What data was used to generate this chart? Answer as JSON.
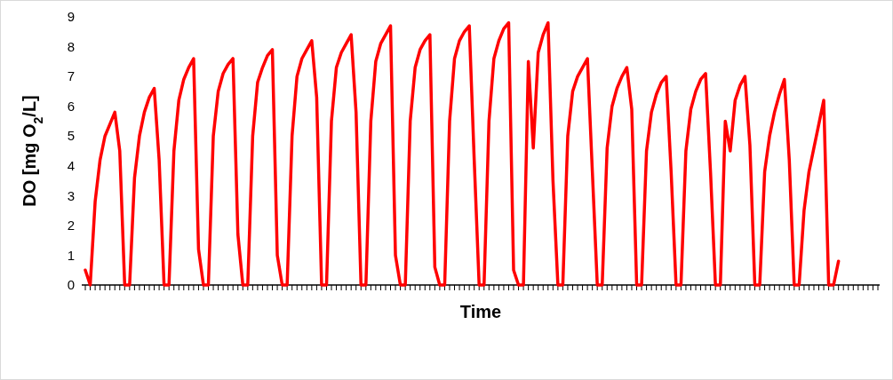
{
  "chart_data": {
    "type": "line",
    "xlabel": "Time",
    "ylabel": "DO [mg O$_{2}$/L]",
    "categories": [
      null,
      null,
      null,
      null,
      null,
      null,
      null,
      null,
      null,
      null,
      null,
      null,
      null,
      null,
      null,
      null,
      null,
      null,
      null,
      null,
      null,
      null,
      null,
      null,
      null,
      null,
      null,
      null,
      null,
      null,
      null,
      null,
      null,
      null,
      null,
      null,
      null,
      null,
      null,
      null,
      null,
      null,
      null,
      null,
      null,
      null,
      null,
      null,
      null,
      null,
      null,
      null,
      null,
      null,
      null,
      null,
      null,
      null,
      null,
      null,
      null,
      null,
      null,
      null,
      null,
      null,
      null,
      null,
      null,
      null,
      null,
      null,
      null,
      null,
      null,
      null,
      null,
      null,
      null,
      null,
      null,
      null,
      null,
      null,
      null,
      null,
      null,
      null,
      null,
      null,
      null,
      null,
      null,
      null,
      null,
      null,
      null,
      null,
      null,
      null,
      null,
      null,
      null,
      null,
      null,
      null,
      null,
      null,
      null,
      null,
      null,
      null,
      null,
      null,
      null,
      null,
      null,
      null,
      null,
      null,
      null,
      null,
      null,
      null,
      null,
      null,
      null,
      null,
      null,
      null,
      null,
      null,
      null,
      null,
      null,
      null,
      null,
      null,
      null,
      null,
      null,
      null,
      null,
      null,
      null,
      null,
      null,
      null,
      null,
      null,
      null,
      null,
      null,
      null,
      null,
      null,
      null,
      null,
      null,
      null,
      null,
      null
    ],
    "series": [
      {
        "color": "#ff0000",
        "values": [
          0.5,
          0,
          2.8,
          4.2,
          5.0,
          5.4,
          5.8,
          4.5,
          0,
          0,
          3.6,
          5.0,
          5.8,
          6.3,
          6.6,
          4.2,
          0,
          0,
          4.5,
          6.2,
          6.9,
          7.3,
          7.6,
          1.2,
          0,
          0,
          5.0,
          6.5,
          7.1,
          7.4,
          7.6,
          1.7,
          0,
          0,
          5.0,
          6.8,
          7.3,
          7.7,
          7.9,
          1.0,
          0,
          0,
          5.0,
          7.0,
          7.6,
          7.9,
          8.2,
          6.3,
          0,
          0,
          5.5,
          7.3,
          7.8,
          8.1,
          8.4,
          5.8,
          0,
          0,
          5.5,
          7.5,
          8.1,
          8.4,
          8.7,
          1.0,
          0,
          0,
          5.5,
          7.3,
          7.9,
          8.2,
          8.4,
          0.6,
          0,
          0,
          5.5,
          7.6,
          8.2,
          8.5,
          8.7,
          4.2,
          0,
          0,
          5.5,
          7.6,
          8.2,
          8.6,
          8.8,
          0.5,
          0,
          0,
          7.5,
          4.6,
          7.8,
          8.4,
          8.8,
          3.5,
          0,
          0,
          5.0,
          6.5,
          7.0,
          7.3,
          7.6,
          3.8,
          0,
          0,
          4.6,
          6.0,
          6.6,
          7.0,
          7.3,
          5.9,
          0,
          0,
          4.5,
          5.8,
          6.4,
          6.8,
          7.0,
          3.8,
          0,
          0,
          4.5,
          5.9,
          6.5,
          6.9,
          7.1,
          3.8,
          0,
          0,
          5.5,
          4.5,
          6.2,
          6.7,
          7.0,
          4.7,
          0,
          0,
          3.8,
          5.0,
          5.8,
          6.4,
          6.9,
          4.2,
          0,
          0,
          2.5,
          3.8,
          4.6,
          5.4,
          6.2,
          0,
          0,
          0.8,
          null,
          null,
          null,
          null,
          null,
          null,
          null,
          null
        ]
      }
    ],
    "ylim": [
      0,
      9
    ],
    "yticks": [
      0,
      1,
      2,
      3,
      4,
      5,
      6,
      7,
      8,
      9
    ],
    "grid": false,
    "marker": "none",
    "line_style": "solid"
  }
}
